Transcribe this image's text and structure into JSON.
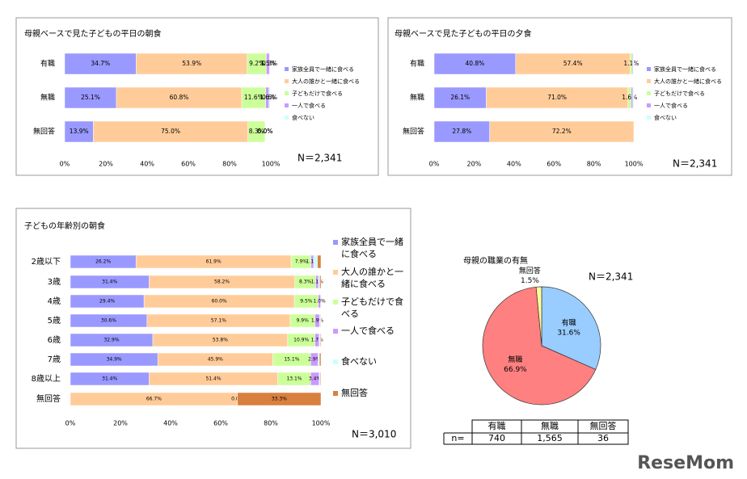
{
  "chart_data": [
    {
      "type": "stacked-bar",
      "title": "母親ベースで見た子どもの平日の朝食",
      "categories": [
        "有職",
        "無職",
        "無回答"
      ],
      "series": [
        {
          "name": "家族全員で一緒に食べる",
          "color": "#9999ff",
          "values": [
            34.7,
            25.1,
            13.9
          ],
          "value_labels": [
            "34.7%",
            "25.1%",
            "13.9%"
          ]
        },
        {
          "name": "大人の誰かと一緒に食べる",
          "color": "#ffcc99",
          "values": [
            53.9,
            60.8,
            75.0
          ],
          "value_labels": [
            "53.9%",
            "60.8%",
            "75.0%"
          ]
        },
        {
          "name": "子どもだけで食べる",
          "color": "#ccff99",
          "values": [
            9.2,
            11.6,
            8.3
          ],
          "value_labels": [
            "9.2%",
            "11.6%",
            "8.3%"
          ]
        },
        {
          "name": "一人で食べる",
          "color": "#cc99ff",
          "values": [
            1.5,
            1.6,
            0.0
          ],
          "value_labels": [
            "1.5%",
            "1.6%",
            "0.0%"
          ]
        },
        {
          "name": "食べない",
          "color": "#ccffff",
          "values": [
            0.3,
            0.6,
            0.0
          ],
          "value_labels": [
            "0.3%",
            "0.6%",
            "0.0%"
          ]
        }
      ],
      "xlim": [
        0,
        100
      ],
      "xticks": [
        {
          "value": 0,
          "label": "0%"
        },
        {
          "value": 20,
          "label": "20%"
        },
        {
          "value": 40,
          "label": "40%"
        },
        {
          "value": 60,
          "label": "60%"
        },
        {
          "value": 80,
          "label": "80%"
        },
        {
          "value": 100,
          "label": "100%"
        }
      ],
      "legend": "right",
      "annotation": "N＝2,341"
    },
    {
      "type": "stacked-bar",
      "title": "母親ベースで見た子どもの平日の夕食",
      "categories": [
        "有職",
        "無職",
        "無回答"
      ],
      "series": [
        {
          "name": "家族全員で一緒に食べる",
          "color": "#9999ff",
          "values": [
            40.8,
            26.1,
            27.8
          ],
          "value_labels": [
            "40.8%",
            "26.1%",
            "27.8%"
          ]
        },
        {
          "name": "大人の誰かと一緒に食べる",
          "color": "#ffcc99",
          "values": [
            57.4,
            71.0,
            72.2
          ],
          "value_labels": [
            "57.4%",
            "71.0%",
            "72.2%"
          ]
        },
        {
          "name": "子どもだけで食べる",
          "color": "#ccff99",
          "values": [
            1.1,
            1.6,
            0.0
          ],
          "value_labels": [
            "1.1%",
            "1.6%",
            null
          ]
        },
        {
          "name": "一人で食べる",
          "color": "#cc99ff",
          "values": [
            0.4,
            0.8,
            0.0
          ],
          "value_labels": [
            null,
            null,
            null
          ]
        },
        {
          "name": "食べない",
          "color": "#ccffff",
          "values": [
            0.3,
            0.5,
            0.0
          ],
          "value_labels": [
            null,
            null,
            null
          ]
        }
      ],
      "xlim": [
        0,
        100
      ],
      "xticks": [
        {
          "value": 0,
          "label": "0%"
        },
        {
          "value": 20,
          "label": "20%"
        },
        {
          "value": 40,
          "label": "40%"
        },
        {
          "value": 60,
          "label": "60%"
        },
        {
          "value": 80,
          "label": "80%"
        },
        {
          "value": 100,
          "label": "100%"
        }
      ],
      "legend": "right",
      "annotation": "N＝2,341"
    },
    {
      "type": "stacked-bar",
      "title": "子どもの年齢別の朝食",
      "categories": [
        "2歳以下",
        "3歳",
        "4歳",
        "5歳",
        "6歳",
        "7歳",
        "8歳以上",
        "無回答"
      ],
      "series": [
        {
          "name": "家族全員で一緒に食べる",
          "color": "#9999ff",
          "values": [
            26.2,
            31.4,
            29.4,
            30.6,
            32.9,
            34.9,
            31.4,
            0.0
          ],
          "value_labels": [
            "26.2%",
            "31.4%",
            "29.4%",
            "30.6%",
            "32.9%",
            "34.9%",
            "31.4%",
            null
          ]
        },
        {
          "name": "大人の誰かと一緒に食べる",
          "color": "#ffcc99",
          "values": [
            61.9,
            58.2,
            60.0,
            57.1,
            53.8,
            45.9,
            51.4,
            66.7
          ],
          "value_labels": [
            "61.9%",
            "58.2%",
            "60.0%",
            "57.1%",
            "53.8%",
            "45.9%",
            "51.4%",
            "66.7%"
          ]
        },
        {
          "name": "子どもだけで食べる",
          "color": "#ccff99",
          "values": [
            7.9,
            8.3,
            9.5,
            9.9,
            10.9,
            15.1,
            13.1,
            0.0
          ],
          "value_labels": [
            "7.9%",
            "8.3%",
            "9.5%",
            "9.9%",
            "10.9%",
            "15.1%",
            "13.1%",
            "0.0%"
          ]
        },
        {
          "name": "一人で食べる",
          "color": "#cc99ff",
          "values": [
            1.1,
            1.1,
            1.0,
            1.9,
            1.7,
            2.9,
            3.4,
            0.0
          ],
          "value_labels": [
            "1.1%",
            "1.1%",
            "1.0%",
            "1.9%",
            "1.7%",
            "2.9%",
            "3.4%",
            null
          ]
        },
        {
          "name": "食べない",
          "color": "#ccffff",
          "values": [
            1.5,
            0.5,
            0.1,
            0.3,
            0.4,
            0.6,
            0.4,
            0.0
          ],
          "value_labels": [
            null,
            null,
            null,
            null,
            null,
            null,
            null,
            null
          ]
        },
        {
          "name": "無回答",
          "color": "#d9803f",
          "values": [
            1.4,
            0.5,
            0.0,
            0.2,
            0.3,
            0.6,
            0.3,
            33.3
          ],
          "value_labels": [
            null,
            null,
            null,
            null,
            null,
            null,
            null,
            "33.3%"
          ]
        }
      ],
      "xlim": [
        0,
        100
      ],
      "xticks": [
        {
          "value": 0,
          "label": "0%"
        },
        {
          "value": 20,
          "label": "20%"
        },
        {
          "value": 40,
          "label": "40%"
        },
        {
          "value": 60,
          "label": "60%"
        },
        {
          "value": 80,
          "label": "80%"
        },
        {
          "value": 100,
          "label": "100%"
        }
      ],
      "legend": "right",
      "annotation": "N＝3,010"
    },
    {
      "type": "pie",
      "title": "母親の職業の有無",
      "categories": [
        "有職",
        "無職",
        "無回答"
      ],
      "values": [
        31.6,
        66.9,
        1.5
      ],
      "value_labels": [
        "31.6%",
        "66.9%",
        "1.5%"
      ],
      "colors": [
        "#99ccff",
        "#ff8080",
        "#ffff99"
      ],
      "annotation": "N＝2,341"
    }
  ],
  "table": {
    "header": [
      "有職",
      "無職",
      "無回答"
    ],
    "rows": [
      [
        "n=",
        "740",
        "1,565",
        "36"
      ]
    ]
  },
  "logo": "ReseMom"
}
